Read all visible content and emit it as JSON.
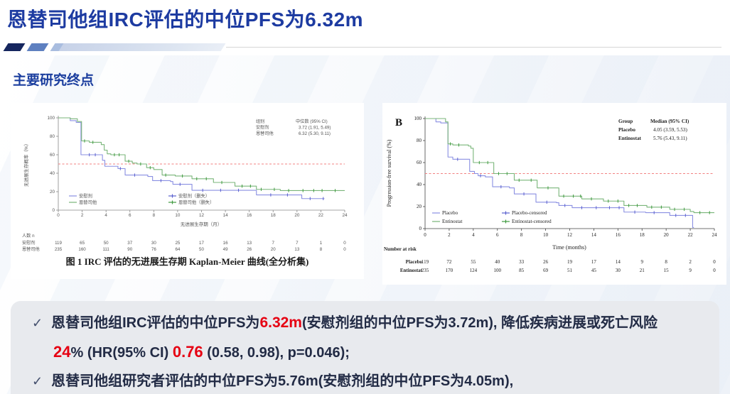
{
  "slide": {
    "title": "恩替司他组IRC评估的中位PFS为6.32m",
    "section_label": "主要研究终点",
    "accent_blue": "#1d3ba1",
    "highlight_red": "#e60012"
  },
  "chart_data": [
    {
      "type": "line",
      "subtype": "kaplan-meier-step",
      "panel_label": "",
      "title": "图 1 IRC 评估的无进展生存期 Kaplan-Meier 曲线(全分析集)",
      "xlabel": "无进展生存期（月）",
      "ylabel": "无进展生存概率（%）",
      "xlim": [
        0,
        24
      ],
      "ylim": [
        0,
        100
      ],
      "xticks": [
        0,
        2,
        4,
        6,
        8,
        10,
        12,
        14,
        16,
        18,
        20,
        22,
        24
      ],
      "yticks": [
        0,
        20,
        40,
        60,
        80,
        100
      ],
      "reference_line_y": 50,
      "reference_color": "#f28080",
      "grid": false,
      "median_table": {
        "header": [
          "组别",
          "中位数 (95% CI)"
        ],
        "rows": [
          [
            "安慰剂",
            "3.72 (1.91, 5.49)"
          ],
          [
            "恩替司他",
            "6.32 (5.30, 9.11)"
          ]
        ]
      },
      "legend": [
        {
          "label": "安慰剂",
          "color": "#8a8fe2",
          "censored": false
        },
        {
          "label": "恩替司他",
          "color": "#79b579",
          "censored": false
        },
        {
          "label": "安慰剂（删失）",
          "color": "#5a60cf",
          "censored": true
        },
        {
          "label": "恩替司他（删失）",
          "color": "#3e9a3e",
          "censored": true
        }
      ],
      "series": [
        {
          "name": "安慰剂",
          "color": "#8a8fe2",
          "censor_color": "#5a60cf",
          "end_x": 22.3,
          "drops": [
            [
              1.0,
              97
            ],
            [
              1.5,
              95
            ],
            [
              1.9,
              60
            ],
            [
              3.7,
              54
            ],
            [
              3.9,
              47.5
            ],
            [
              5.0,
              45
            ],
            [
              5.6,
              38
            ],
            [
              7.5,
              36.5
            ],
            [
              7.9,
              32
            ],
            [
              9.4,
              31
            ],
            [
              9.6,
              28
            ],
            [
              11.2,
              21.5
            ],
            [
              16.6,
              16.5
            ],
            [
              20.4,
              12.5
            ]
          ],
          "censor_x": [
            2.6,
            3.1,
            5.2,
            6.4,
            8.6,
            10.2,
            12.1,
            13.6,
            15.1,
            17.8,
            19.2,
            21.1,
            22.2
          ]
        },
        {
          "name": "恩替司他",
          "color": "#79b579",
          "censor_color": "#3e9a3e",
          "end_x": 24,
          "drops": [
            [
              1.0,
              99
            ],
            [
              1.6,
              96
            ],
            [
              1.95,
              75
            ],
            [
              2.6,
              73.5
            ],
            [
              3.6,
              71
            ],
            [
              3.85,
              65
            ],
            [
              4.1,
              61
            ],
            [
              4.4,
              60
            ],
            [
              5.6,
              53
            ],
            [
              6.2,
              51
            ],
            [
              6.6,
              50
            ],
            [
              7.4,
              46
            ],
            [
              8.0,
              44
            ],
            [
              8.7,
              38
            ],
            [
              9.8,
              37
            ],
            [
              11.2,
              34
            ],
            [
              13.0,
              30
            ],
            [
              14.8,
              26
            ],
            [
              16.6,
              22.5
            ],
            [
              18.6,
              21.2
            ]
          ],
          "censor_x": [
            2.2,
            2.9,
            4.7,
            5.1,
            5.9,
            6.9,
            7.7,
            9.0,
            10.4,
            11.6,
            12.4,
            13.7,
            15.4,
            16.1,
            17.0,
            18.1,
            19.3,
            20.5,
            21.4,
            22.1,
            23.2
          ]
        }
      ],
      "risk_table": {
        "header": "人数 n",
        "rows": [
          {
            "label": "安慰剂",
            "values": [
              119,
              65,
              50,
              37,
              30,
              25,
              17,
              16,
              13,
              7,
              7,
              1,
              0
            ]
          },
          {
            "label": "恩替司他",
            "values": [
              235,
              160,
              111,
              90,
              76,
              64,
              50,
              49,
              26,
              20,
              13,
              8,
              0
            ]
          }
        ]
      }
    },
    {
      "type": "line",
      "subtype": "kaplan-meier-step",
      "panel_label": "B",
      "title": "",
      "xlabel": "Time (months)",
      "ylabel": "Progression-free survival (%)",
      "xlim": [
        0,
        24
      ],
      "ylim": [
        0,
        100
      ],
      "xticks": [
        0,
        2,
        4,
        6,
        8,
        10,
        12,
        14,
        16,
        18,
        20,
        22,
        24
      ],
      "yticks": [
        0,
        20,
        40,
        60,
        80,
        100
      ],
      "reference_line_y": 50,
      "reference_color": "#f28080",
      "grid": false,
      "median_table": {
        "header": [
          "Group",
          "Median (95% CI)"
        ],
        "rows": [
          [
            "Placebo",
            "4.05 (3.59, 5.53)"
          ],
          [
            "Entinostat",
            "5.76 (5.43, 9.11)"
          ]
        ]
      },
      "legend": [
        {
          "label": "Placebo",
          "color": "#8a8fe2",
          "censored": false
        },
        {
          "label": "Entinostat",
          "color": "#79b579",
          "censored": false
        },
        {
          "label": "Placebo-censored",
          "color": "#5a60cf",
          "censored": true
        },
        {
          "label": "Entinostat-censored",
          "color": "#3e9a3e",
          "censored": true
        }
      ],
      "series": [
        {
          "name": "Placebo",
          "color": "#8a8fe2",
          "censor_color": "#5a60cf",
          "end_x": 22.3,
          "drops": [
            [
              0.9,
              97
            ],
            [
              1.3,
              96
            ],
            [
              1.9,
              65
            ],
            [
              2.3,
              63
            ],
            [
              3.7,
              52
            ],
            [
              4.1,
              50
            ],
            [
              4.4,
              48
            ],
            [
              5.0,
              47
            ],
            [
              5.6,
              38
            ],
            [
              7.0,
              37
            ],
            [
              7.4,
              31.5
            ],
            [
              9.2,
              24
            ],
            [
              10.9,
              23.5
            ],
            [
              11.1,
              21
            ],
            [
              12.2,
              19
            ],
            [
              16.5,
              15
            ],
            [
              18.3,
              14.5
            ],
            [
              20.3,
              12
            ],
            [
              22.2,
              1
            ]
          ],
          "censor_x": [
            2.7,
            4.6,
            6.3,
            8.2,
            10.1,
            11.6,
            13.0,
            14.2,
            15.3,
            16.1,
            17.4,
            19.0,
            20.8,
            21.6
          ]
        },
        {
          "name": "Entinostat",
          "color": "#79b579",
          "censor_color": "#3e9a3e",
          "end_x": 24,
          "drops": [
            [
              1.7,
              97
            ],
            [
              1.9,
              77
            ],
            [
              2.3,
              76
            ],
            [
              3.6,
              75
            ],
            [
              3.8,
              73
            ],
            [
              4.0,
              60
            ],
            [
              5.7,
              50
            ],
            [
              7.4,
              44
            ],
            [
              9.3,
              37
            ],
            [
              11.1,
              29.5
            ],
            [
              13.0,
              27
            ],
            [
              14.8,
              25
            ],
            [
              16.5,
              21
            ],
            [
              18.4,
              19.5
            ],
            [
              20.3,
              17.5
            ],
            [
              22.0,
              15.5
            ],
            [
              22.3,
              14.5
            ]
          ],
          "censor_x": [
            2.1,
            2.8,
            4.5,
            5.2,
            6.1,
            6.8,
            7.8,
            8.8,
            10.2,
            11.5,
            12.3,
            12.9,
            13.8,
            15.2,
            16.0,
            16.9,
            17.6,
            18.8,
            19.6,
            20.7,
            21.5,
            22.8,
            23.6
          ]
        }
      ],
      "risk_table": {
        "header": "Number at risk",
        "rows": [
          {
            "label": "Placebo",
            "values": [
              119,
              72,
              55,
              40,
              33,
              26,
              19,
              17,
              14,
              9,
              8,
              2,
              0
            ]
          },
          {
            "label": "Entinostat",
            "values": [
              235,
              170,
              124,
              100,
              85,
              69,
              51,
              45,
              30,
              21,
              15,
              9,
              0
            ]
          }
        ]
      }
    }
  ],
  "summary": {
    "check": "✓",
    "bullet1_line1": {
      "seg1": "恩替司他组IRC评估的中位PFS为",
      "seg2": "6.32m",
      "seg3": "(安慰剂组的中位PFS为3.72m), 降低疾病进展或死亡风险"
    },
    "bullet1_line2": {
      "seg1": "24",
      "seg2": "%  (HR(95% CI) ",
      "seg3": "0.76",
      "seg4": " (0.58, 0.98), p=0.046);"
    },
    "bullet2": {
      "text": "恩替司他组研究者评估的中位PFS为5.76m(安慰剂组的中位PFS为4.05m),"
    }
  }
}
